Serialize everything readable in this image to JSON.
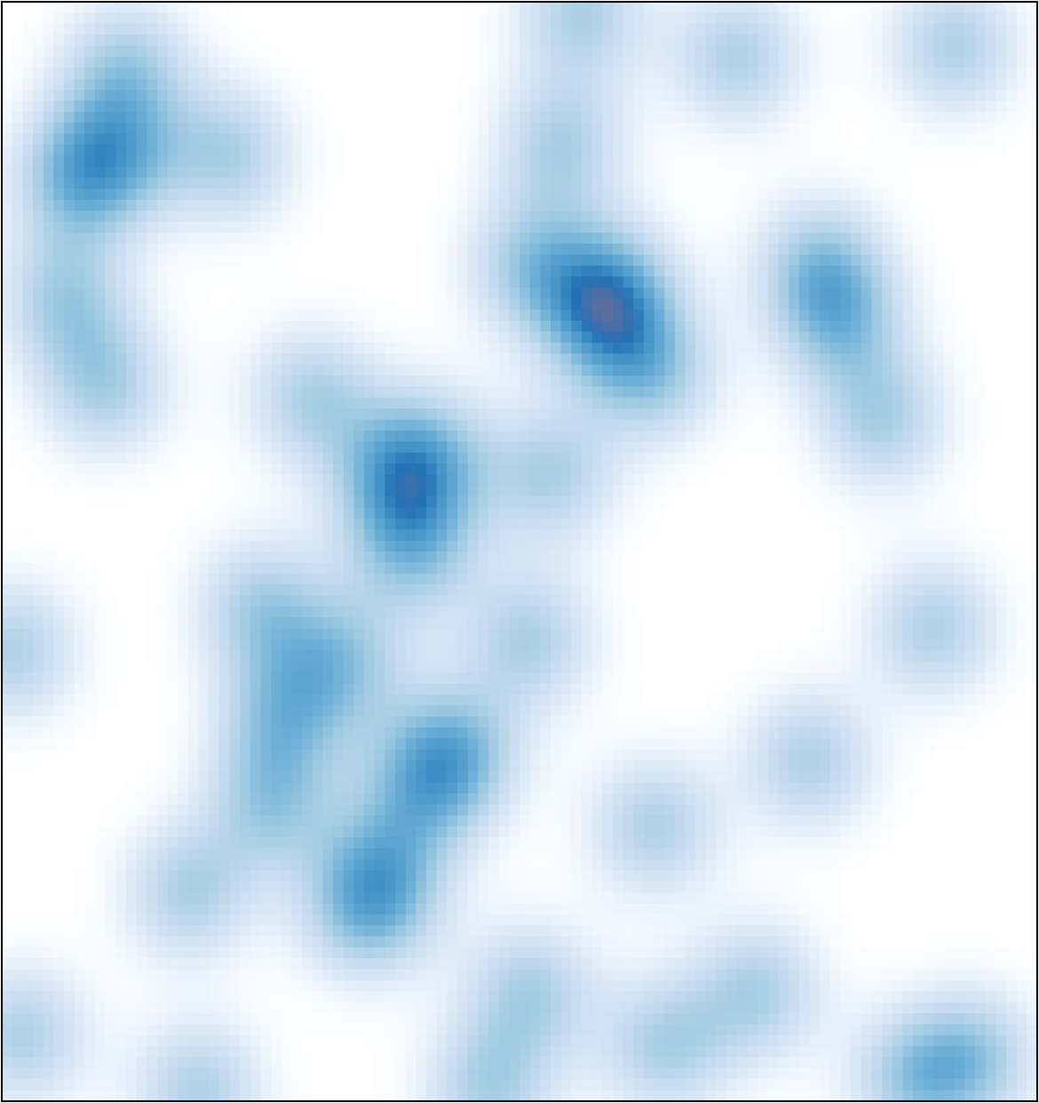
{
  "chart_data": {
    "type": "heatmap",
    "subtype": "kernel-density",
    "title": "",
    "xlabel": "",
    "ylabel": "",
    "axes_visible": false,
    "grid": false,
    "legend": "none",
    "colormap": "Blues",
    "xlim": [
      0,
      100
    ],
    "ylim": [
      0,
      100
    ],
    "points": [
      {
        "x": 12.0,
        "y": 94.0
      },
      {
        "x": 7.0,
        "y": 84.0
      },
      {
        "x": 11.0,
        "y": 86.0
      },
      {
        "x": 22.0,
        "y": 86.0
      },
      {
        "x": 6.0,
        "y": 73.0
      },
      {
        "x": 10.0,
        "y": 65.0
      },
      {
        "x": 56.0,
        "y": 99.0
      },
      {
        "x": 54.0,
        "y": 87.0
      },
      {
        "x": 71.0,
        "y": 95.0
      },
      {
        "x": 92.0,
        "y": 96.0
      },
      {
        "x": 51.0,
        "y": 76.0
      },
      {
        "x": 59.0,
        "y": 74.0
      },
      {
        "x": 63.0,
        "y": 66.0
      },
      {
        "x": 58.0,
        "y": 71.0
      },
      {
        "x": 79.0,
        "y": 76.0
      },
      {
        "x": 81.0,
        "y": 71.0
      },
      {
        "x": 85.0,
        "y": 62.0
      },
      {
        "x": 30.0,
        "y": 64.0
      },
      {
        "x": 41.0,
        "y": 59.0
      },
      {
        "x": 38.0,
        "y": 56.0
      },
      {
        "x": 40.0,
        "y": 50.0
      },
      {
        "x": 53.0,
        "y": 57.0
      },
      {
        "x": 25.0,
        "y": 45.0
      },
      {
        "x": 33.0,
        "y": 40.0
      },
      {
        "x": 27.0,
        "y": 35.0
      },
      {
        "x": 44.0,
        "y": 32.0
      },
      {
        "x": 41.0,
        "y": 29.0
      },
      {
        "x": 26.0,
        "y": 27.0
      },
      {
        "x": 37.0,
        "y": 21.0
      },
      {
        "x": 35.0,
        "y": 17.0
      },
      {
        "x": 18.0,
        "y": 19.0
      },
      {
        "x": 51.0,
        "y": 42.0
      },
      {
        "x": 1.0,
        "y": 41.0
      },
      {
        "x": 63.0,
        "y": 25.0
      },
      {
        "x": 78.0,
        "y": 31.0
      },
      {
        "x": 90.0,
        "y": 43.0
      },
      {
        "x": 51.0,
        "y": 10.0
      },
      {
        "x": 73.0,
        "y": 10.0
      },
      {
        "x": 64.0,
        "y": 5.0
      },
      {
        "x": 2.0,
        "y": 6.0
      },
      {
        "x": 19.0,
        "y": 1.0
      },
      {
        "x": 47.0,
        "y": 1.0
      },
      {
        "x": 94.0,
        "y": 4.0
      },
      {
        "x": 88.0,
        "y": 2.0
      }
    ]
  }
}
